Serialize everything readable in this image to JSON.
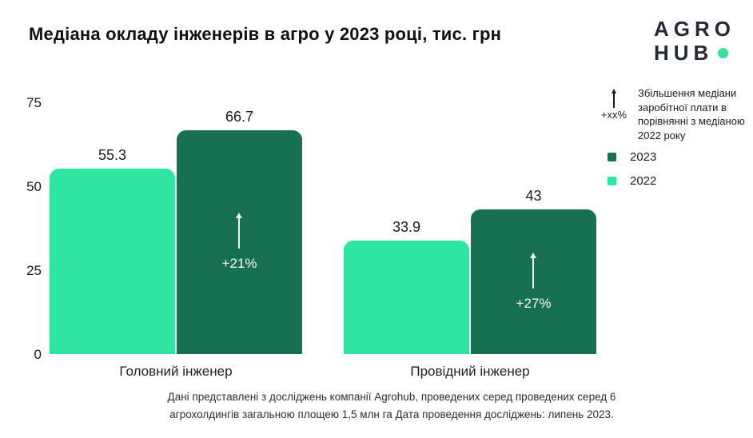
{
  "header": {
    "title": "Медіана окладу інженерів в агро у 2023 році, тис. грн",
    "logo": {
      "line1": "AGRO",
      "line2": "HUB",
      "text_color": "#232B39",
      "dot_color": "#3ADE9A"
    }
  },
  "legend": {
    "increase_symbol": "+xx%",
    "increase_note": "Збільшення медіани заробітної плати в порівнянні з медіаною 2022 року",
    "items": [
      {
        "label": "2023",
        "color": "#177050"
      },
      {
        "label": "2022",
        "color": "#2EE6A2"
      }
    ]
  },
  "chart_data": {
    "type": "bar",
    "title": "Медіана окладу інженерів в агро у 2023 році, тис. грн",
    "unit": "тис. грн",
    "categories": [
      "Головний інженер",
      "Провідний інженер"
    ],
    "series": [
      {
        "name": "2022",
        "color": "#2EE6A2",
        "values": [
          55.3,
          33.9
        ]
      },
      {
        "name": "2023",
        "color": "#177050",
        "values": [
          66.7,
          43
        ]
      }
    ],
    "annotations": {
      "percent_increase": [
        "+21%",
        "+27%"
      ]
    },
    "ylim": [
      0,
      75
    ],
    "yticks": [
      75,
      50,
      25,
      0
    ],
    "grid": false,
    "legend_position": "top-right"
  },
  "footer": {
    "line1": "Дані представлені з досліджень компанії Agrohub, проведених серед проведених серед 6",
    "line2": "агрохолдингів загальною площею 1,5 млн га Дата проведення досліджень: липень 2023."
  }
}
